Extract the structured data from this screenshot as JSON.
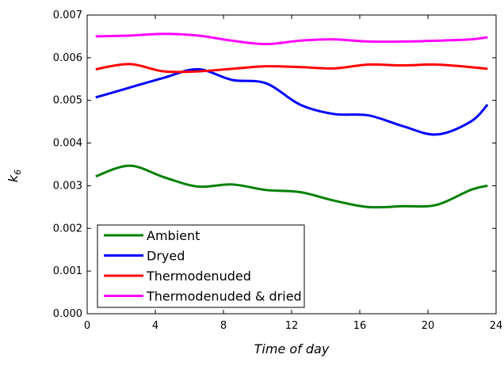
{
  "chart_data": {
    "type": "line",
    "xlabel": "Time of day",
    "ylabel": "k",
    "ylabel_subscript": "6",
    "x": [
      0.5,
      2.5,
      4.5,
      6.5,
      8.5,
      10.5,
      12.5,
      14.5,
      16.5,
      18.5,
      20.5,
      22.5,
      23.5
    ],
    "series": [
      {
        "name": "Ambient",
        "color": "#008000",
        "values": [
          0.00322,
          0.00347,
          0.0032,
          0.00298,
          0.00303,
          0.0029,
          0.00285,
          0.00265,
          0.0025,
          0.00252,
          0.00255,
          0.0029,
          0.003
        ]
      },
      {
        "name": "Dryed",
        "color": "#0000ff",
        "values": [
          0.00507,
          0.0053,
          0.00553,
          0.00573,
          0.00548,
          0.0054,
          0.0049,
          0.00468,
          0.00465,
          0.0044,
          0.0042,
          0.0045,
          0.0049
        ]
      },
      {
        "name": "Thermodenuded",
        "color": "#ff0000",
        "values": [
          0.00573,
          0.00585,
          0.00568,
          0.00568,
          0.00574,
          0.0058,
          0.00578,
          0.00575,
          0.00584,
          0.00582,
          0.00584,
          0.00578,
          0.00574
        ]
      },
      {
        "name": "Thermodenuded & dried",
        "color": "#ff00ff",
        "values": [
          0.0065,
          0.00652,
          0.00656,
          0.00652,
          0.0064,
          0.00632,
          0.0064,
          0.00643,
          0.00638,
          0.00638,
          0.0064,
          0.00643,
          0.00648
        ]
      }
    ],
    "xlim": [
      0,
      24
    ],
    "xticks": [
      0,
      4,
      8,
      12,
      16,
      20,
      24
    ],
    "ylim": [
      0,
      0.007
    ],
    "yticks": [
      {
        "value": 0,
        "label": "0.000"
      },
      0.001,
      0.002,
      0.003,
      0.004,
      0.005,
      0.006,
      0.007
    ],
    "legend": "lower left",
    "grid": false
  }
}
